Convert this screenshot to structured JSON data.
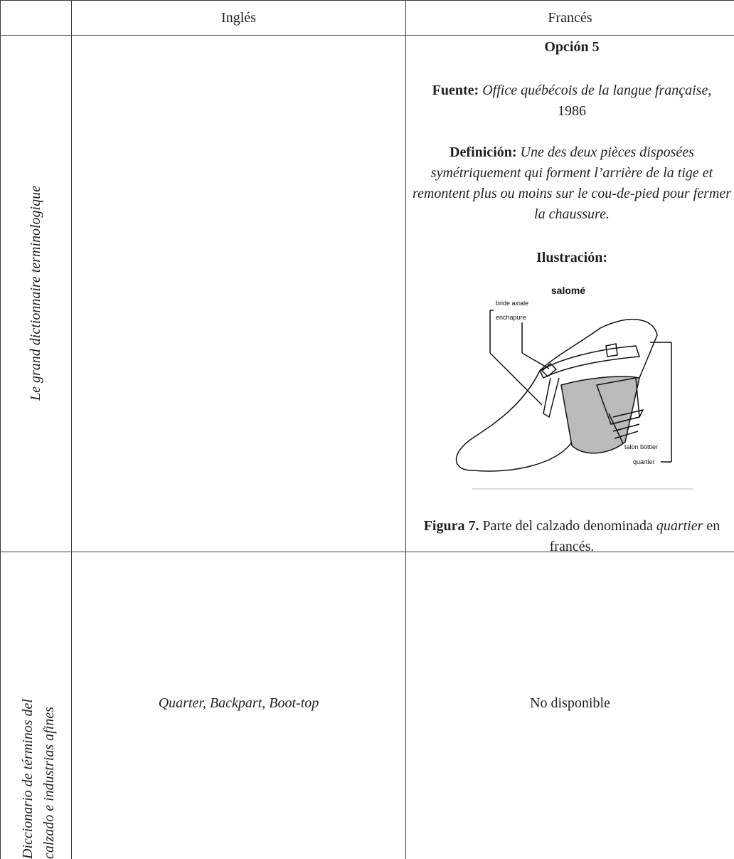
{
  "table": {
    "header": [
      "Inglés",
      "Francés"
    ],
    "rows": [
      {
        "label": "Le grand dictionnaire terminologique",
        "french": {
          "option": "Opción 5",
          "source_label": "Fuente:",
          "source_name": "Office québécois de la langue française,",
          "source_year": "1986",
          "definition_label": "Definición:",
          "definition": "Une des deux pièces disposées symétriquement qui forment l’arrière de la tige et remontent plus ou moins sur le cou-de-pied pour fermer la chaussure.",
          "illustration_label": "Ilustración:",
          "figure": {
            "title": "salomé",
            "labels": [
              "bride axiale",
              "enchapure",
              "talon bottier",
              "quartier"
            ]
          },
          "caption_label": "Figura 7.",
          "caption_text": "Parte del calzado denominada",
          "caption_term": "quartier",
          "caption_end": "en francés."
        }
      },
      {
        "label": [
          "Diccionario de términos del",
          "calzado e industrias afines"
        ],
        "english": "Quarter, Backpart, Boot-top",
        "french": "No disponible"
      }
    ]
  }
}
